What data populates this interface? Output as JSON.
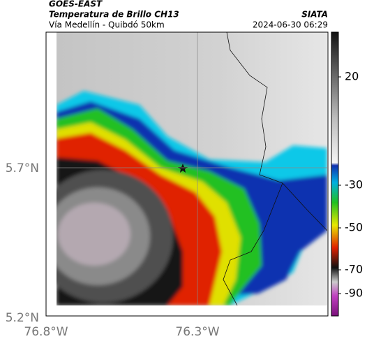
{
  "header": {
    "title": "GOES-EAST",
    "subtitle": "Temperatura de Brillo CH13",
    "source": "SIATA",
    "route": "Vía Medellín - Quibdó 50km",
    "datetime": "2024-06-30 06:29"
  },
  "map": {
    "lat_labels": [
      "5.7°N",
      "5.2°N"
    ],
    "lon_labels": [
      "76.8°W",
      "76.3°W"
    ]
  },
  "colorbar": {
    "ticks": [
      20,
      -30,
      -50,
      -70,
      -90
    ]
  }
}
